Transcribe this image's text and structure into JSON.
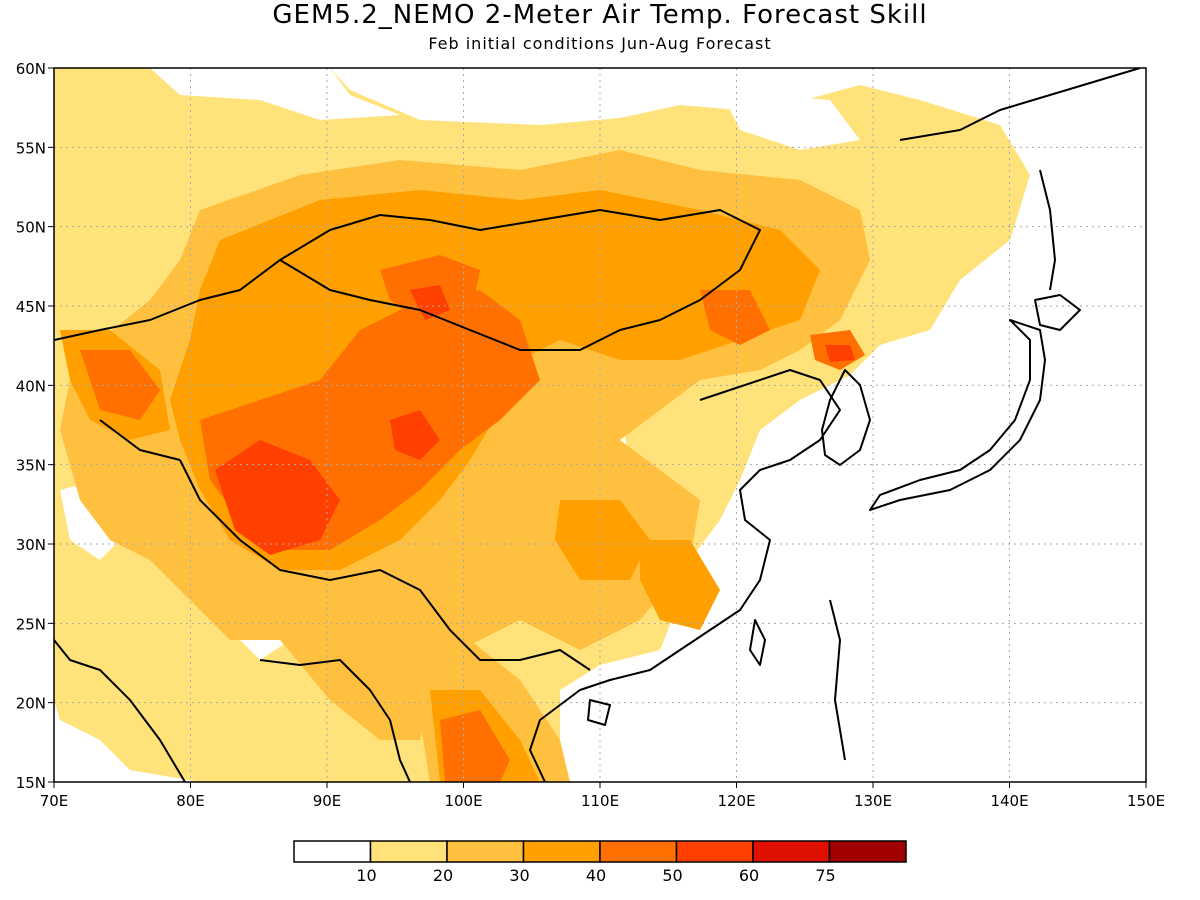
{
  "title": "GEM5.2_NEMO 2-Meter Air Temp. Forecast Skill",
  "subtitle": "Feb initial conditions  Jun-Aug Forecast",
  "map": {
    "lon_range": [
      70,
      150
    ],
    "lat_range": [
      15,
      60
    ],
    "lon_ticks": [
      "70E",
      "80E",
      "90E",
      "100E",
      "110E",
      "120E",
      "130E",
      "140E",
      "150E"
    ],
    "lat_ticks": [
      "15N",
      "20N",
      "25N",
      "30N",
      "35N",
      "40N",
      "45N",
      "50N",
      "55N",
      "60N"
    ],
    "gridlines": "dotted"
  },
  "colorbar": {
    "colors": [
      "#ffffff",
      "#ffe27a",
      "#ffc040",
      "#ffa000",
      "#ff7000",
      "#ff4000",
      "#e01000",
      "#a00000"
    ],
    "labels": [
      "10",
      "20",
      "30",
      "40",
      "50",
      "60",
      "75"
    ]
  }
}
